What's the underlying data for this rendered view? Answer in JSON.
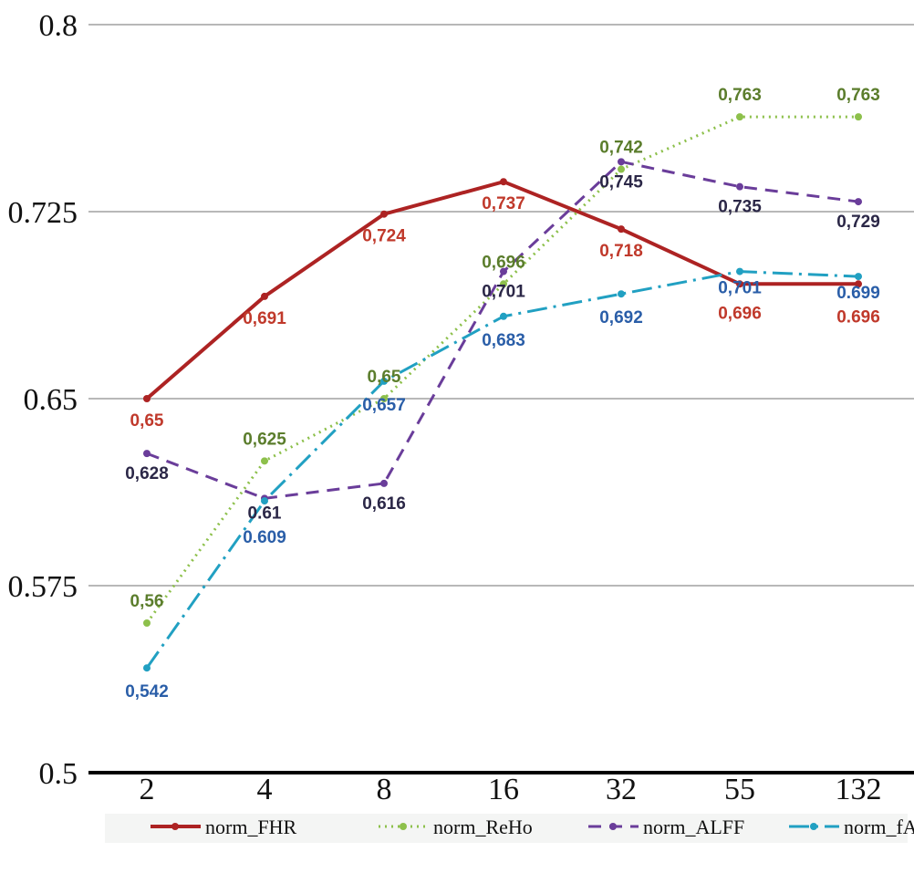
{
  "chart_data": {
    "type": "line",
    "title": "",
    "xlabel": "",
    "ylabel": "",
    "categories": [
      "2",
      "4",
      "8",
      "16",
      "32",
      "55",
      "132"
    ],
    "ylim": [
      0.5,
      0.8
    ],
    "yticks": [
      "0.5",
      "0.575",
      "0.65",
      "0.725",
      "0.8"
    ],
    "grid": true,
    "legend_position": "bottom",
    "series": [
      {
        "name": "norm_FHR",
        "color": "#ad2323",
        "label_color": "#c0392b",
        "dash": "",
        "width": 4,
        "values": [
          0.65,
          0.691,
          0.724,
          0.737,
          0.718,
          0.696,
          0.696
        ],
        "labels": [
          "0,65",
          "0,691",
          "0,724",
          "0,737",
          "0,718",
          "0,696",
          "0.696"
        ]
      },
      {
        "name": "norm_ReHo",
        "color": "#8dc04b",
        "label_color": "#5b7d2c",
        "dash": "2 5",
        "width": 3,
        "values": [
          0.56,
          0.625,
          0.65,
          0.696,
          0.742,
          0.763,
          0.763
        ],
        "labels": [
          "0,56",
          "0,625",
          "0,65",
          "0,696",
          "0,742",
          "0,763",
          "0,763"
        ]
      },
      {
        "name": "norm_ALFF",
        "color": "#6a3d9a",
        "label_color": "#2b2747",
        "dash": "14 9",
        "width": 3,
        "values": [
          0.628,
          0.61,
          0.616,
          0.701,
          0.745,
          0.735,
          0.729
        ],
        "labels": [
          "0,628",
          "0.61",
          "0,616",
          "0,701",
          "0,745",
          "0,735",
          "0,729"
        ]
      },
      {
        "name": "norm_fALFF",
        "color": "#21a0c2",
        "label_color": "#2a5ea8",
        "dash": "22 7 3 7",
        "width": 3,
        "values": [
          0.542,
          0.609,
          0.657,
          0.683,
          0.692,
          0.701,
          0.699
        ],
        "labels": [
          "0,542",
          "0.609",
          "0,657",
          "0,683",
          "0,692",
          "0,701",
          "0.699"
        ]
      }
    ]
  }
}
